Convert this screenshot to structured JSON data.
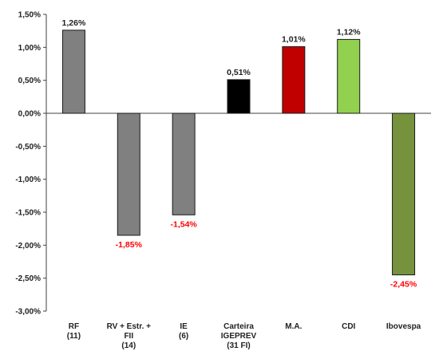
{
  "chart_data": {
    "type": "bar",
    "title": "",
    "xlabel": "",
    "ylabel": "",
    "ylim": [
      -3.0,
      1.5
    ],
    "ytick_step": 0.5,
    "grid": false,
    "legend": "none",
    "categories": [
      [
        "RF",
        "(11)"
      ],
      [
        "RV + Estr. +",
        "FII",
        "(14)"
      ],
      [
        "IE",
        "(6)"
      ],
      [
        "Carteira",
        "IGEPREV",
        "(31 FI)"
      ],
      [
        "M.A."
      ],
      [
        "CDI"
      ],
      [
        "Ibovespa"
      ]
    ],
    "values": [
      1.26,
      -1.85,
      -1.54,
      0.51,
      1.01,
      1.12,
      -2.45
    ],
    "bar_colors": [
      "#808080",
      "#808080",
      "#808080",
      "#000000",
      "#c00000",
      "#92d050",
      "#76923c"
    ],
    "positive_label_color": "#222222",
    "negative_label_color": "#ff0000"
  }
}
